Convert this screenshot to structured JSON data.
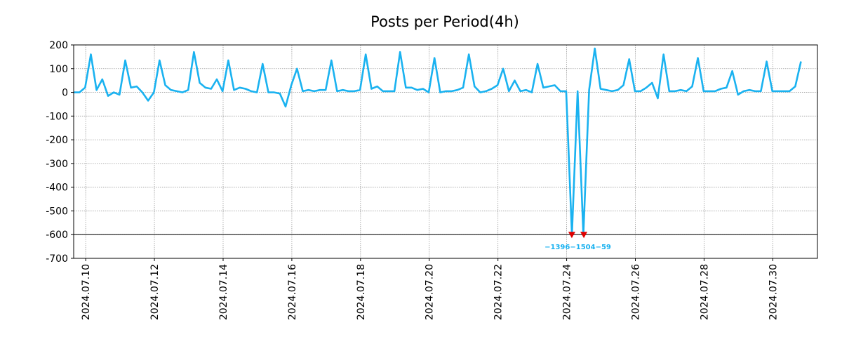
{
  "chart_data": {
    "type": "line",
    "title": "Posts per Period(4h)",
    "xlabel": "",
    "ylabel": "",
    "ylim": [
      -700,
      200
    ],
    "x_range_days": [
      -0.35,
      21.3
    ],
    "grid": true,
    "clip_floor": -600,
    "colors": {
      "line": "#1ab2f0",
      "marker": "#e00000",
      "axis": "#000000",
      "grid": "#999999"
    },
    "y_ticks": [
      200,
      100,
      0,
      -100,
      -200,
      -300,
      -400,
      -500,
      -600,
      -700
    ],
    "y_tick_labels": [
      "200",
      "100",
      "0",
      "-100",
      "-200",
      "-300",
      "-400",
      "-500",
      "-600",
      "-700"
    ],
    "x_ticks": [
      {
        "day": 0,
        "label": "2024.07.10"
      },
      {
        "day": 2,
        "label": "2024.07.12"
      },
      {
        "day": 4,
        "label": "2024.07.14"
      },
      {
        "day": 6,
        "label": "2024.07.16"
      },
      {
        "day": 8,
        "label": "2024.07.18"
      },
      {
        "day": 10,
        "label": "2024.07.20"
      },
      {
        "day": 12,
        "label": "2024.07.22"
      },
      {
        "day": 14,
        "label": "2024.07.24"
      },
      {
        "day": 16,
        "label": "2024.07.26"
      },
      {
        "day": 18,
        "label": "2024.07.28"
      },
      {
        "day": 20,
        "label": "2024.07.30"
      }
    ],
    "series": [
      {
        "name": "posts",
        "x_start_day": -0.35,
        "x_step_days": 0.1667,
        "values": [
          0,
          0,
          20,
          160,
          10,
          55,
          -15,
          0,
          -10,
          135,
          20,
          25,
          0,
          -35,
          0,
          135,
          30,
          10,
          5,
          0,
          10,
          170,
          40,
          20,
          15,
          55,
          5,
          135,
          10,
          20,
          15,
          5,
          0,
          120,
          0,
          0,
          -5,
          -60,
          30,
          100,
          5,
          10,
          5,
          10,
          10,
          135,
          5,
          10,
          5,
          5,
          10,
          160,
          15,
          25,
          5,
          5,
          5,
          170,
          20,
          20,
          10,
          15,
          0,
          145,
          0,
          5,
          5,
          10,
          20,
          160,
          25,
          0,
          5,
          15,
          30,
          100,
          5,
          50,
          5,
          10,
          0,
          120,
          20,
          25,
          30,
          5,
          5,
          -1396,
          5,
          -1504,
          10,
          185,
          15,
          10,
          5,
          10,
          30,
          140,
          5,
          5,
          20,
          40,
          -25,
          160,
          5,
          5,
          10,
          5,
          25,
          145,
          5,
          5,
          5,
          15,
          20,
          90,
          -10,
          5,
          10,
          5,
          5,
          130,
          5,
          5,
          5,
          5,
          25,
          130
        ]
      }
    ],
    "clipped_points": [
      {
        "day": 14.15,
        "value": -1396,
        "label": "-1396"
      },
      {
        "day": 14.5,
        "value": -1504,
        "label": "-1504"
      }
    ],
    "clip_label_text": "−1396−1504−59"
  }
}
